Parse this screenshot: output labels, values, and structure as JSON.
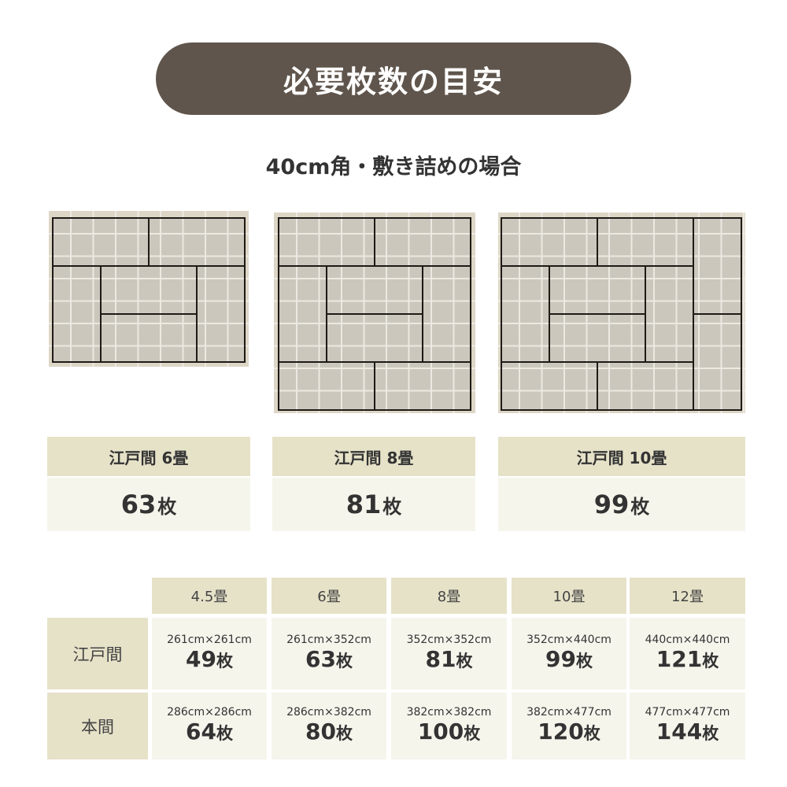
{
  "header": {
    "title": "必要枚数の目安",
    "subtitle": "40cm角・敷き詰めの場合"
  },
  "colors": {
    "pill": "#5f554c",
    "label_bg": "#e6e2c8",
    "value_bg": "#f6f5ec",
    "diagram_bg": "#ddd6c6",
    "tile": "#cbc7bc",
    "mat_line": "#1e1a16"
  },
  "layouts": [
    {
      "label": "江戸間 6畳",
      "count": "63",
      "unit": "枚"
    },
    {
      "label": "江戸間 8畳",
      "count": "81",
      "unit": "枚"
    },
    {
      "label": "江戸間 10畳",
      "count": "99",
      "unit": "枚"
    }
  ],
  "table": {
    "columns": [
      "4.5畳",
      "6畳",
      "8畳",
      "10畳",
      "12畳"
    ],
    "rows": [
      {
        "label": "江戸間",
        "cells": [
          {
            "dim": "261cm×261cm",
            "count": "49",
            "unit": "枚"
          },
          {
            "dim": "261cm×352cm",
            "count": "63",
            "unit": "枚"
          },
          {
            "dim": "352cm×352cm",
            "count": "81",
            "unit": "枚"
          },
          {
            "dim": "352cm×440cm",
            "count": "99",
            "unit": "枚"
          },
          {
            "dim": "440cm×440cm",
            "count": "121",
            "unit": "枚"
          }
        ]
      },
      {
        "label": "本間",
        "cells": [
          {
            "dim": "286cm×286cm",
            "count": "64",
            "unit": "枚"
          },
          {
            "dim": "286cm×382cm",
            "count": "80",
            "unit": "枚"
          },
          {
            "dim": "382cm×382cm",
            "count": "100",
            "unit": "枚"
          },
          {
            "dim": "382cm×477cm",
            "count": "120",
            "unit": "枚"
          },
          {
            "dim": "477cm×477cm",
            "count": "144",
            "unit": "枚"
          }
        ]
      }
    ]
  }
}
